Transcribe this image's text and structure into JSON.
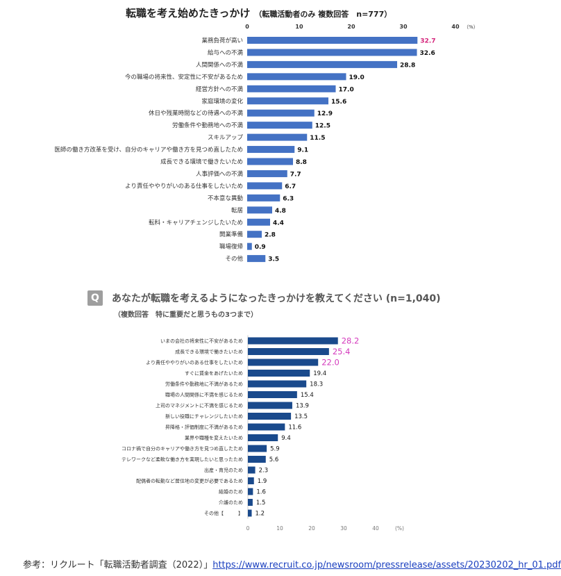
{
  "chart1": {
    "title": "転職を考え始めたきっかけ",
    "subtitle": "（転職活動者のみ 複数回答　n=777）",
    "unit": "（%）",
    "ticks": [
      "0",
      "10",
      "20",
      "30",
      "40"
    ]
  },
  "chart2": {
    "badge": "Q",
    "question": "あなたが転職を考えるようになったきっかけを教えてください (n=1,040)",
    "note": "（複数回答　特に重要だと思うもの3つまで）",
    "unit": "(%)",
    "ticks": [
      "0",
      "10",
      "20",
      "30",
      "40"
    ]
  },
  "footer": {
    "label": "参考：リクルート「転職活動者調査（2022）」",
    "link": "https://www.recruit.co.jp/newsroom/pressrelease/assets/20230202_hr_01.pdf"
  },
  "chart_data": [
    {
      "type": "bar",
      "orientation": "horizontal",
      "title": "転職を考え始めたきっかけ",
      "subtitle": "（転職活動者のみ 複数回答　n=777）",
      "xlim": [
        0,
        40
      ],
      "bar_color": "#4472c4",
      "highlight_color": "#d4237a",
      "categories": [
        "業務負荷が高い",
        "給与への不満",
        "人間関係への不満",
        "今の職場の将来性、安定性に不安があるため",
        "経営方針への不満",
        "家庭環境の変化",
        "休日や残業時間などの待遇への不満",
        "労働条件や勤務地への不満",
        "スキルアップ",
        "医師の働き方改革を受け、自分のキャリアや働き方を見つめ直したため",
        "成長できる環境で働きたいため",
        "人事評価への不満",
        "より責任ややりがいのある仕事をしたいため",
        "不本意な異動",
        "転居",
        "転科・キャリアチェンジしたいため",
        "開業準備",
        "職場復帰",
        "その他"
      ],
      "values": [
        32.7,
        32.6,
        28.8,
        19.0,
        17.0,
        15.6,
        12.9,
        12.5,
        11.5,
        9.1,
        8.8,
        7.7,
        6.7,
        6.3,
        4.8,
        4.4,
        2.8,
        0.9,
        3.5
      ],
      "labels": [
        "32.7",
        "32.6",
        "28.8",
        "19.0",
        "17.0",
        "15.6",
        "12.9",
        "12.5",
        "11.5",
        "9.1",
        "8.8",
        "7.7",
        "6.7",
        "6.3",
        "4.8",
        "4.4",
        "2.8",
        "0.9",
        "3.5"
      ],
      "highlighted": [
        true,
        false,
        false,
        false,
        false,
        false,
        false,
        false,
        false,
        false,
        false,
        false,
        false,
        false,
        false,
        false,
        false,
        false,
        false
      ]
    },
    {
      "type": "bar",
      "orientation": "horizontal",
      "title": "あなたが転職を考えるようになったきっかけを教えてください (n=1,040)",
      "subtitle": "（複数回答　特に重要だと思うもの3つまで）",
      "xlim": [
        0,
        40
      ],
      "bar_color": "#1a4a8c",
      "highlight_color": "#d43bbd",
      "categories": [
        "いまの会社の将来性に不安があるため",
        "成長できる環境で働きたいため",
        "より責任ややりがいのある仕事をしたいため",
        "すぐに賃金をあげたいため",
        "労働条件や勤務地に不満があるため",
        "職場の人間関係に不満を感じるため",
        "上司のマネジメントに不満を感じるため",
        "新しい役職にチャレンジしたいため",
        "昇降格・評価制度に不満があるため",
        "業界や職種を変えたいため",
        "コロナ禍で自分のキャリアや働き方を見つめ直したため",
        "テレワークなど柔軟な働き方を実現したいと思ったため",
        "出産・育児のため",
        "配偶者の転勤など居住地の変更が必要であるため",
        "結婚のため",
        "介護のため",
        "その他【　　　】"
      ],
      "values": [
        28.2,
        25.4,
        22.0,
        19.4,
        18.3,
        15.4,
        13.9,
        13.5,
        11.6,
        9.4,
        5.9,
        5.6,
        2.3,
        1.9,
        1.6,
        1.5,
        1.2
      ],
      "labels": [
        "28.2",
        "25.4",
        "22.0",
        "19.4",
        "18.3",
        "15.4",
        "13.9",
        "13.5",
        "11.6",
        "9.4",
        "5.9",
        "5.6",
        "2.3",
        "1.9",
        "1.6",
        "1.5",
        "1.2"
      ],
      "highlighted": [
        true,
        true,
        true,
        false,
        false,
        false,
        false,
        false,
        false,
        false,
        false,
        false,
        false,
        false,
        false,
        false,
        false
      ]
    }
  ]
}
